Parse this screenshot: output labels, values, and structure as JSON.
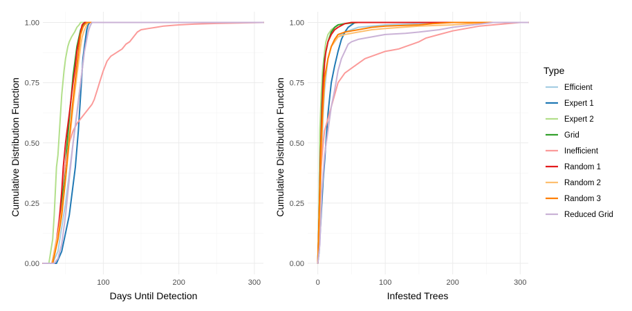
{
  "chart_data": [
    {
      "type": "line",
      "xlabel": "Days Until Detection",
      "ylabel": "Cumulative Distribution Function",
      "xlim": [
        20,
        312
      ],
      "ylim": [
        0,
        1
      ],
      "x_ticks": [
        100,
        200,
        300
      ],
      "y_ticks": [
        0,
        0.25,
        0.5,
        0.75,
        1
      ],
      "y_tick_labels": [
        "0.00",
        "0.25",
        "0.50",
        "0.75",
        "1.00"
      ],
      "series": [
        {
          "name": "Efficient",
          "x": [
            20,
            33,
            40,
            50,
            60,
            70,
            75,
            80,
            85,
            312
          ],
          "y": [
            0,
            0,
            0.05,
            0.25,
            0.5,
            0.75,
            0.88,
            0.97,
            1.0,
            1.0
          ]
        },
        {
          "name": "Expert 1",
          "x": [
            20,
            38,
            45,
            55,
            63,
            67,
            70,
            73,
            75,
            78,
            80,
            82,
            312
          ],
          "y": [
            0,
            0,
            0.05,
            0.2,
            0.4,
            0.55,
            0.7,
            0.85,
            0.9,
            0.97,
            0.99,
            1.0,
            1.0
          ]
        },
        {
          "name": "Expert 2",
          "x": [
            20,
            28,
            33,
            35,
            38,
            40,
            42,
            45,
            48,
            50,
            53,
            55,
            58,
            60,
            62,
            65,
            68,
            70,
            312
          ],
          "y": [
            0,
            0,
            0.1,
            0.2,
            0.4,
            0.45,
            0.55,
            0.7,
            0.8,
            0.85,
            0.9,
            0.92,
            0.94,
            0.95,
            0.96,
            0.98,
            0.99,
            1.0,
            1.0
          ]
        },
        {
          "name": "Grid",
          "x": [
            20,
            32,
            40,
            45,
            50,
            55,
            60,
            65,
            70,
            73,
            76,
            312
          ],
          "y": [
            0,
            0,
            0.12,
            0.25,
            0.42,
            0.6,
            0.78,
            0.9,
            0.97,
            0.99,
            1.0,
            1.0
          ]
        },
        {
          "name": "Inefficient",
          "x": [
            20,
            32,
            38,
            42,
            45,
            50,
            55,
            60,
            65,
            70,
            75,
            80,
            85,
            88,
            92,
            95,
            100,
            105,
            110,
            115,
            120,
            125,
            130,
            135,
            140,
            145,
            150,
            160,
            170,
            180,
            200,
            220,
            250,
            280,
            312
          ],
          "y": [
            0,
            0,
            0.1,
            0.2,
            0.3,
            0.42,
            0.5,
            0.55,
            0.58,
            0.6,
            0.62,
            0.64,
            0.66,
            0.68,
            0.72,
            0.75,
            0.8,
            0.84,
            0.86,
            0.87,
            0.88,
            0.89,
            0.91,
            0.92,
            0.94,
            0.96,
            0.97,
            0.975,
            0.98,
            0.985,
            0.99,
            0.993,
            0.996,
            0.998,
            1.0
          ]
        },
        {
          "name": "Random 1",
          "x": [
            20,
            32,
            38,
            42,
            45,
            47,
            50,
            52,
            55,
            58,
            60,
            63,
            65,
            68,
            70,
            72,
            75,
            312
          ],
          "y": [
            0,
            0,
            0.08,
            0.18,
            0.3,
            0.4,
            0.5,
            0.55,
            0.62,
            0.7,
            0.75,
            0.82,
            0.88,
            0.93,
            0.96,
            0.99,
            1.0,
            1.0
          ]
        },
        {
          "name": "Random 2",
          "x": [
            20,
            32,
            40,
            45,
            50,
            55,
            60,
            65,
            70,
            72,
            75,
            78,
            80,
            312
          ],
          "y": [
            0,
            0,
            0.12,
            0.22,
            0.35,
            0.5,
            0.65,
            0.78,
            0.9,
            0.94,
            0.97,
            0.99,
            1.0,
            1.0
          ]
        },
        {
          "name": "Random 3",
          "x": [
            20,
            33,
            40,
            45,
            50,
            55,
            60,
            65,
            68,
            70,
            73,
            75,
            78,
            312
          ],
          "y": [
            0,
            0,
            0.1,
            0.2,
            0.35,
            0.52,
            0.68,
            0.82,
            0.9,
            0.95,
            0.98,
            0.99,
            1.0,
            1.0
          ]
        },
        {
          "name": "Reduced Grid",
          "x": [
            20,
            35,
            40,
            45,
            50,
            55,
            60,
            65,
            70,
            75,
            80,
            83,
            85,
            312
          ],
          "y": [
            0,
            0,
            0.02,
            0.08,
            0.2,
            0.35,
            0.5,
            0.62,
            0.75,
            0.88,
            0.96,
            0.99,
            1.0,
            1.0
          ]
        }
      ]
    },
    {
      "type": "line",
      "xlabel": "Infested Trees",
      "ylabel": "Cumulative Distribution Function",
      "xlim": [
        -15,
        312
      ],
      "ylim": [
        0,
        1
      ],
      "x_ticks": [
        0,
        100,
        200,
        300
      ],
      "y_ticks": [
        0,
        0.25,
        0.5,
        0.75,
        1
      ],
      "y_tick_labels": [
        "0.00",
        "0.25",
        "0.50",
        "0.75",
        "1.00"
      ],
      "series": [
        {
          "name": "Efficient",
          "x": [
            0,
            2,
            5,
            8,
            10,
            15,
            20,
            30,
            40,
            50,
            60,
            80,
            100,
            150,
            200,
            312
          ],
          "y": [
            0,
            0.1,
            0.4,
            0.62,
            0.72,
            0.85,
            0.9,
            0.94,
            0.96,
            0.97,
            0.98,
            0.985,
            0.99,
            0.995,
            1.0,
            1.0
          ]
        },
        {
          "name": "Expert 1",
          "x": [
            0,
            2,
            5,
            8,
            10,
            12,
            15,
            18,
            20,
            25,
            30,
            35,
            40,
            45,
            50,
            55,
            312
          ],
          "y": [
            0,
            0.05,
            0.2,
            0.35,
            0.42,
            0.5,
            0.62,
            0.7,
            0.75,
            0.82,
            0.88,
            0.93,
            0.96,
            0.98,
            0.99,
            1.0,
            1.0
          ]
        },
        {
          "name": "Expert 2",
          "x": [
            0,
            1,
            2,
            3,
            5,
            7,
            10,
            12,
            15,
            20,
            25,
            30,
            40,
            50,
            312
          ],
          "y": [
            0,
            0.15,
            0.3,
            0.55,
            0.7,
            0.8,
            0.88,
            0.92,
            0.95,
            0.97,
            0.98,
            0.99,
            0.995,
            1.0,
            1.0
          ]
        },
        {
          "name": "Grid",
          "x": [
            0,
            2,
            4,
            6,
            8,
            10,
            15,
            20,
            25,
            30,
            40,
            50,
            60,
            312
          ],
          "y": [
            0,
            0.2,
            0.45,
            0.65,
            0.78,
            0.85,
            0.92,
            0.96,
            0.98,
            0.99,
            0.995,
            0.998,
            1.0,
            1.0
          ]
        },
        {
          "name": "Inefficient",
          "x": [
            0,
            2,
            5,
            8,
            10,
            15,
            20,
            25,
            30,
            40,
            50,
            60,
            70,
            80,
            90,
            100,
            110,
            120,
            130,
            140,
            150,
            160,
            180,
            200,
            220,
            240,
            260,
            280,
            300,
            312
          ],
          "y": [
            0,
            0.15,
            0.4,
            0.5,
            0.55,
            0.6,
            0.65,
            0.7,
            0.75,
            0.79,
            0.81,
            0.83,
            0.85,
            0.86,
            0.87,
            0.88,
            0.885,
            0.89,
            0.9,
            0.91,
            0.92,
            0.935,
            0.95,
            0.965,
            0.975,
            0.985,
            0.99,
            0.995,
            1.0,
            1.0
          ]
        },
        {
          "name": "Random 1",
          "x": [
            0,
            2,
            4,
            6,
            8,
            10,
            12,
            15,
            20,
            25,
            30,
            40,
            50,
            312
          ],
          "y": [
            0,
            0.2,
            0.45,
            0.62,
            0.75,
            0.83,
            0.88,
            0.92,
            0.95,
            0.97,
            0.98,
            0.995,
            1.0,
            1.0
          ]
        },
        {
          "name": "Random 2",
          "x": [
            0,
            2,
            5,
            8,
            10,
            15,
            20,
            30,
            40,
            60,
            80,
            100,
            150,
            200,
            250,
            312
          ],
          "y": [
            0,
            0.15,
            0.45,
            0.65,
            0.75,
            0.85,
            0.9,
            0.94,
            0.95,
            0.96,
            0.97,
            0.975,
            0.985,
            0.99,
            1.0,
            1.0
          ]
        },
        {
          "name": "Random 3",
          "x": [
            0,
            2,
            5,
            8,
            10,
            15,
            20,
            25,
            30,
            40,
            60,
            80,
            100,
            150,
            170,
            200,
            312
          ],
          "y": [
            0,
            0.2,
            0.5,
            0.68,
            0.77,
            0.85,
            0.9,
            0.93,
            0.95,
            0.96,
            0.97,
            0.98,
            0.985,
            0.99,
            0.995,
            1.0,
            1.0
          ]
        },
        {
          "name": "Reduced Grid",
          "x": [
            0,
            3,
            6,
            10,
            15,
            20,
            25,
            30,
            35,
            40,
            45,
            50,
            60,
            80,
            100,
            130,
            150,
            180,
            200,
            230,
            260,
            312
          ],
          "y": [
            0,
            0.08,
            0.3,
            0.45,
            0.55,
            0.65,
            0.72,
            0.8,
            0.85,
            0.88,
            0.91,
            0.92,
            0.93,
            0.94,
            0.95,
            0.955,
            0.96,
            0.97,
            0.98,
            0.99,
            1.0,
            1.0
          ]
        }
      ]
    }
  ],
  "legend": {
    "title": "Type",
    "items": [
      {
        "label": "Efficient",
        "color": "#a6cee3"
      },
      {
        "label": "Expert 1",
        "color": "#1f78b4"
      },
      {
        "label": "Expert 2",
        "color": "#b2df8a"
      },
      {
        "label": "Grid",
        "color": "#33a02c"
      },
      {
        "label": "Inefficient",
        "color": "#fb9a99"
      },
      {
        "label": "Random 1",
        "color": "#e31a1c"
      },
      {
        "label": "Random 2",
        "color": "#fdbf6f"
      },
      {
        "label": "Random 3",
        "color": "#ff7f00"
      },
      {
        "label": "Reduced Grid",
        "color": "#cab2d6"
      }
    ]
  }
}
